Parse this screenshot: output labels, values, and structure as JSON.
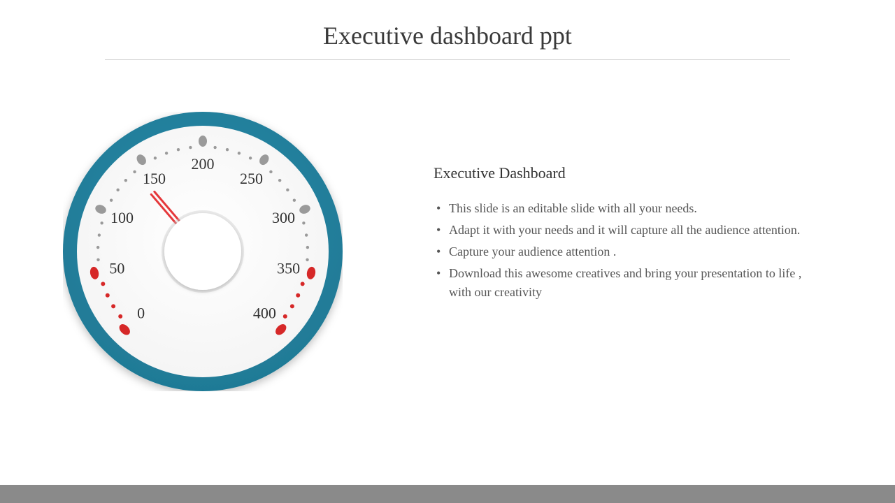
{
  "title": "Executive dashboard ppt",
  "section_heading": "Executive Dashboard",
  "bullets": [
    "This slide is an editable slide with all your needs.",
    "Adapt it with your needs and it will capture all the audience attention.",
    "Capture your audience attention .",
    "Download this awesome creatives and bring your presentation to life , with our creativity"
  ],
  "gauge": {
    "size": 400,
    "outer_ring_color": "#2a8aa8",
    "outer_ring_inner_color": "#1f7a96",
    "face_color": "#f2f2f2",
    "hub_color": "#ffffff",
    "hub_shadow": "#cccccc",
    "tick_label_color": "#333333",
    "tick_label_fontsize": 22,
    "marker_gray": "#9a9a9a",
    "marker_red": "#d62828",
    "dot_gray": "#9a9a9a",
    "dot_red": "#d62828",
    "needle_color": "#e5383b",
    "min": 0,
    "max": 400,
    "value": 140,
    "start_angle_deg": 225,
    "end_angle_deg": -45,
    "major_ticks": [
      0,
      50,
      100,
      150,
      200,
      250,
      300,
      350,
      400
    ],
    "red_zone_low_max": 50,
    "red_zone_high_min": 350,
    "minor_dots_per_gap": 4,
    "label_radius": 125,
    "marker_radius": 158,
    "dot_radius_track": 150,
    "needle_len": 110,
    "hub_radius": 55,
    "face_radius": 180,
    "outer_radius": 200
  },
  "colors": {
    "title_text": "#3a3a3a",
    "body_text": "#555555",
    "rule": "#d0d0d0",
    "footer": "#8a8a8a",
    "background": "#ffffff"
  }
}
